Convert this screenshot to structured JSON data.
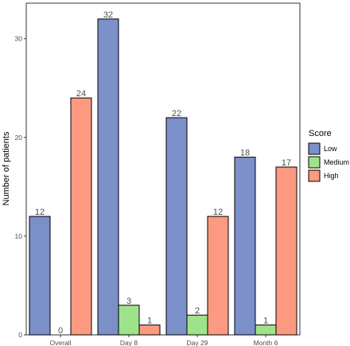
{
  "chart_data": {
    "type": "bar",
    "title": "",
    "xlabel": "",
    "ylabel": "Number of patients",
    "categories": [
      "Overall",
      "Day 8",
      "Day 29",
      "Month 6"
    ],
    "series": [
      {
        "name": "Low",
        "values": [
          12,
          32,
          22,
          18
        ],
        "color": "#7b8fc9"
      },
      {
        "name": "Medium",
        "values": [
          0,
          3,
          2,
          1
        ],
        "color": "#9ee28a"
      },
      {
        "name": "High",
        "values": [
          24,
          1,
          12,
          17
        ],
        "color": "#fb9a80"
      }
    ],
    "ylim": [
      0,
      33.6
    ],
    "yticks": [
      0,
      10,
      20,
      30
    ],
    "grid": false,
    "legend": {
      "title": "Score",
      "placement": "right"
    }
  }
}
